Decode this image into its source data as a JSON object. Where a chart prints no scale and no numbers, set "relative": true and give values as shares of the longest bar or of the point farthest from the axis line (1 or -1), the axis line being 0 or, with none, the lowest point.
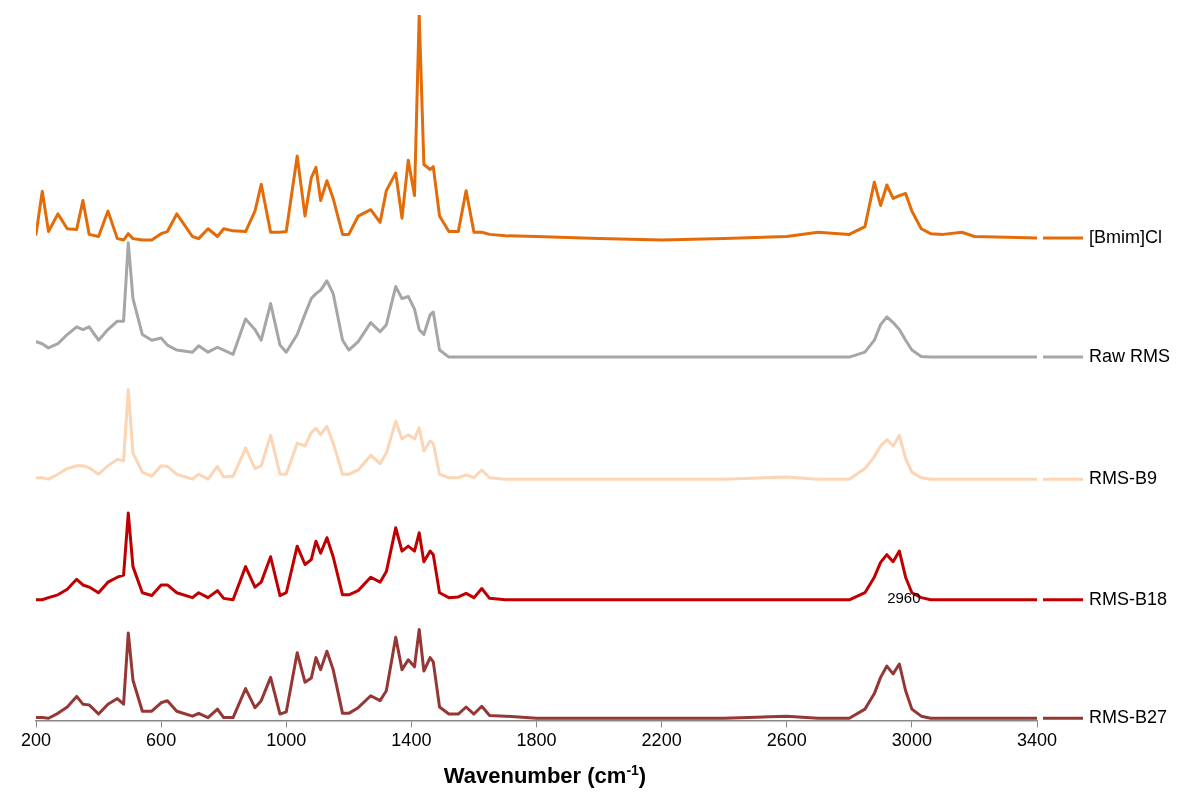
{
  "chart_data": {
    "type": "line",
    "xlabel": "Wavenumber (cm$^{-1}$)",
    "relative": true,
    "legend": "right",
    "grid": false,
    "xlim": [
      200,
      3400
    ],
    "xticks": [
      200,
      600,
      1000,
      1400,
      1800,
      2200,
      2600,
      3000,
      3400
    ],
    "annotations": [
      "2960"
    ],
    "x": [
      200,
      220,
      240,
      270,
      300,
      330,
      350,
      370,
      400,
      430,
      460,
      480,
      495,
      510,
      540,
      570,
      600,
      620,
      650,
      700,
      720,
      750,
      780,
      800,
      830,
      870,
      900,
      920,
      950,
      980,
      1000,
      1035,
      1060,
      1080,
      1095,
      1110,
      1130,
      1150,
      1180,
      1200,
      1230,
      1270,
      1300,
      1320,
      1350,
      1370,
      1390,
      1410,
      1425,
      1440,
      1460,
      1470,
      1490,
      1520,
      1550,
      1575,
      1600,
      1625,
      1650,
      1700,
      1800,
      2000,
      2200,
      2400,
      2600,
      2700,
      2800,
      2850,
      2880,
      2900,
      2920,
      2940,
      2960,
      2980,
      3000,
      3030,
      3060,
      3100,
      3160,
      3200,
      3400
    ],
    "series": [
      {
        "name": "[Bmim]Cl",
        "color": "#e36c09",
        "values": [
          0.689,
          0.75,
          0.693,
          0.718,
          0.697,
          0.696,
          0.737,
          0.689,
          0.686,
          0.722,
          0.683,
          0.681,
          0.69,
          0.683,
          0.681,
          0.681,
          0.69,
          0.693,
          0.718,
          0.686,
          0.683,
          0.697,
          0.686,
          0.697,
          0.694,
          0.693,
          0.722,
          0.76,
          0.692,
          0.692,
          0.693,
          0.8,
          0.715,
          0.769,
          0.784,
          0.737,
          0.765,
          0.74,
          0.689,
          0.689,
          0.715,
          0.724,
          0.706,
          0.751,
          0.776,
          0.712,
          0.794,
          0.744,
          1,
          0.788,
          0.781,
          0.785,
          0.715,
          0.693,
          0.693,
          0.751,
          0.692,
          0.692,
          0.689,
          0.687,
          0.686,
          0.683,
          0.681,
          0.683,
          0.686,
          0.692,
          0.689,
          0.7,
          0.763,
          0.73,
          0.759,
          0.74,
          0.744,
          0.747,
          0.722,
          0.697,
          0.69,
          0.689,
          0.692,
          0.686,
          0.684
        ]
      },
      {
        "name": "Raw RMS",
        "color": "#a6a6a6",
        "values": [
          0.537,
          0.534,
          0.528,
          0.534,
          0.547,
          0.558,
          0.554,
          0.558,
          0.539,
          0.554,
          0.566,
          0.566,
          0.677,
          0.598,
          0.547,
          0.539,
          0.542,
          0.532,
          0.525,
          0.522,
          0.531,
          0.522,
          0.529,
          0.525,
          0.519,
          0.569,
          0.554,
          0.539,
          0.591,
          0.532,
          0.522,
          0.547,
          0.576,
          0.598,
          0.605,
          0.61,
          0.623,
          0.605,
          0.539,
          0.525,
          0.537,
          0.564,
          0.551,
          0.561,
          0.615,
          0.598,
          0.601,
          0.583,
          0.554,
          0.547,
          0.575,
          0.579,
          0.525,
          0.515,
          0.515,
          0.515,
          0.515,
          0.515,
          0.515,
          0.515,
          0.515,
          0.515,
          0.515,
          0.515,
          0.515,
          0.515,
          0.515,
          0.522,
          0.539,
          0.561,
          0.572,
          0.564,
          0.554,
          0.539,
          0.525,
          0.516,
          0.515,
          0.515,
          0.515,
          0.515,
          0.515
        ]
      },
      {
        "name": "RMS-B9",
        "color": "#fcd5b5",
        "values": [
          0.344,
          0.344,
          0.342,
          0.349,
          0.357,
          0.361,
          0.361,
          0.358,
          0.349,
          0.361,
          0.37,
          0.368,
          0.469,
          0.379,
          0.352,
          0.346,
          0.361,
          0.36,
          0.349,
          0.342,
          0.349,
          0.342,
          0.36,
          0.345,
          0.346,
          0.386,
          0.357,
          0.361,
          0.404,
          0.349,
          0.349,
          0.393,
          0.389,
          0.408,
          0.414,
          0.405,
          0.417,
          0.393,
          0.349,
          0.349,
          0.355,
          0.376,
          0.364,
          0.379,
          0.424,
          0.399,
          0.405,
          0.399,
          0.415,
          0.382,
          0.396,
          0.393,
          0.349,
          0.344,
          0.344,
          0.348,
          0.344,
          0.355,
          0.344,
          0.342,
          0.342,
          0.342,
          0.342,
          0.342,
          0.345,
          0.342,
          0.342,
          0.357,
          0.374,
          0.389,
          0.398,
          0.389,
          0.404,
          0.371,
          0.352,
          0.344,
          0.342,
          0.342,
          0.342,
          0.342,
          0.342
        ]
      },
      {
        "name": "RMS-B18",
        "color": "#c00000",
        "values": [
          0.171,
          0.171,
          0.174,
          0.178,
          0.186,
          0.2,
          0.192,
          0.189,
          0.181,
          0.196,
          0.203,
          0.206,
          0.294,
          0.218,
          0.181,
          0.177,
          0.192,
          0.192,
          0.181,
          0.174,
          0.181,
          0.174,
          0.184,
          0.173,
          0.171,
          0.218,
          0.189,
          0.196,
          0.232,
          0.177,
          0.181,
          0.247,
          0.221,
          0.228,
          0.254,
          0.237,
          0.259,
          0.232,
          0.178,
          0.178,
          0.184,
          0.203,
          0.196,
          0.211,
          0.273,
          0.24,
          0.247,
          0.24,
          0.266,
          0.225,
          0.24,
          0.235,
          0.181,
          0.174,
          0.175,
          0.18,
          0.174,
          0.187,
          0.173,
          0.171,
          0.171,
          0.171,
          0.171,
          0.171,
          0.171,
          0.171,
          0.171,
          0.181,
          0.203,
          0.224,
          0.235,
          0.225,
          0.24,
          0.203,
          0.181,
          0.174,
          0.171,
          0.171,
          0.171,
          0.171,
          0.171
        ]
      },
      {
        "name": "RMS-B27",
        "color": "#953735",
        "values": [
          0.004,
          0.004,
          0.003,
          0.01,
          0.019,
          0.034,
          0.023,
          0.022,
          0.009,
          0.023,
          0.031,
          0.023,
          0.124,
          0.057,
          0.013,
          0.013,
          0.025,
          0.028,
          0.013,
          0.006,
          0.01,
          0.004,
          0.016,
          0.004,
          0.004,
          0.045,
          0.018,
          0.028,
          0.061,
          0.009,
          0.012,
          0.096,
          0.054,
          0.06,
          0.089,
          0.072,
          0.098,
          0.072,
          0.01,
          0.01,
          0.018,
          0.035,
          0.028,
          0.042,
          0.118,
          0.072,
          0.086,
          0.076,
          0.129,
          0.07,
          0.089,
          0.083,
          0.019,
          0.009,
          0.009,
          0.019,
          0.009,
          0.02,
          0.007,
          0.006,
          0.003,
          0.003,
          0.003,
          0.003,
          0.006,
          0.003,
          0.003,
          0.016,
          0.038,
          0.061,
          0.077,
          0.066,
          0.08,
          0.042,
          0.016,
          0.006,
          0.003,
          0.003,
          0.003,
          0.003,
          0.003
        ]
      }
    ]
  }
}
